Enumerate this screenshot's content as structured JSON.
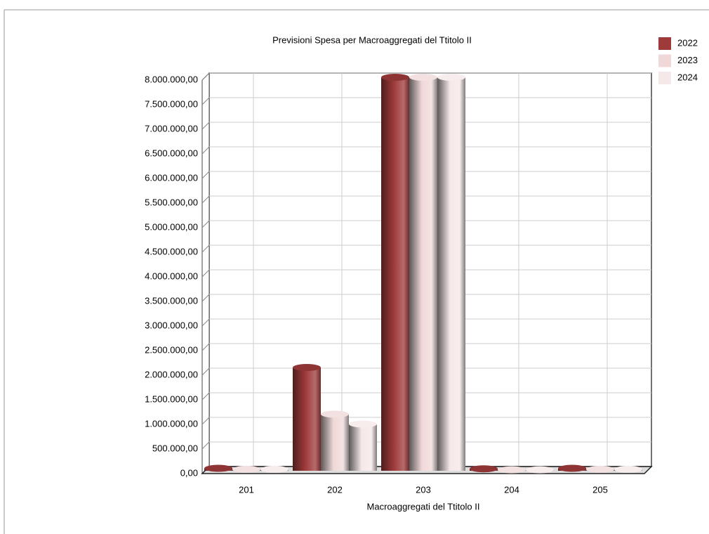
{
  "chart_data": {
    "type": "bar",
    "title": "Previsioni Spesa per Macroaggregati del Ttitolo II",
    "x_label": "Macroaggregati del Ttitolo II",
    "categories": [
      "201",
      "202",
      "203",
      "204",
      "205"
    ],
    "series": [
      {
        "name": "2022",
        "color": "#9e3a3a",
        "values": [
          50000,
          2100000,
          8000000,
          40000,
          50000
        ]
      },
      {
        "name": "2023",
        "color": "#f0d8d8",
        "values": [
          30000,
          1150000,
          8000000,
          20000,
          30000
        ]
      },
      {
        "name": "2024",
        "color": "#f5e8e8",
        "values": [
          30000,
          950000,
          8000000,
          20000,
          30000
        ]
      }
    ],
    "ylim": [
      0,
      8000000
    ],
    "yticks": [
      {
        "value": 0,
        "label": "0,00"
      },
      {
        "value": 500000,
        "label": "500.000,00"
      },
      {
        "value": 1000000,
        "label": "1.000.000,00"
      },
      {
        "value": 1500000,
        "label": "1.500.000,00"
      },
      {
        "value": 2000000,
        "label": "2.000.000,00"
      },
      {
        "value": 2500000,
        "label": "2.500.000,00"
      },
      {
        "value": 3000000,
        "label": "3.000.000,00"
      },
      {
        "value": 3500000,
        "label": "3.500.000,00"
      },
      {
        "value": 4000000,
        "label": "4.000.000,00"
      },
      {
        "value": 4500000,
        "label": "4.500.000,00"
      },
      {
        "value": 5000000,
        "label": "5.000.000,00"
      },
      {
        "value": 5500000,
        "label": "5.500.000,00"
      },
      {
        "value": 6000000,
        "label": "6.000.000,00"
      },
      {
        "value": 6500000,
        "label": "6.500.000,00"
      },
      {
        "value": 7000000,
        "label": "7.000.000,00"
      },
      {
        "value": 7500000,
        "label": "7.500.000,00"
      },
      {
        "value": 8000000,
        "label": "8.000.000,00"
      }
    ],
    "grid": true,
    "legend": "top-right"
  }
}
